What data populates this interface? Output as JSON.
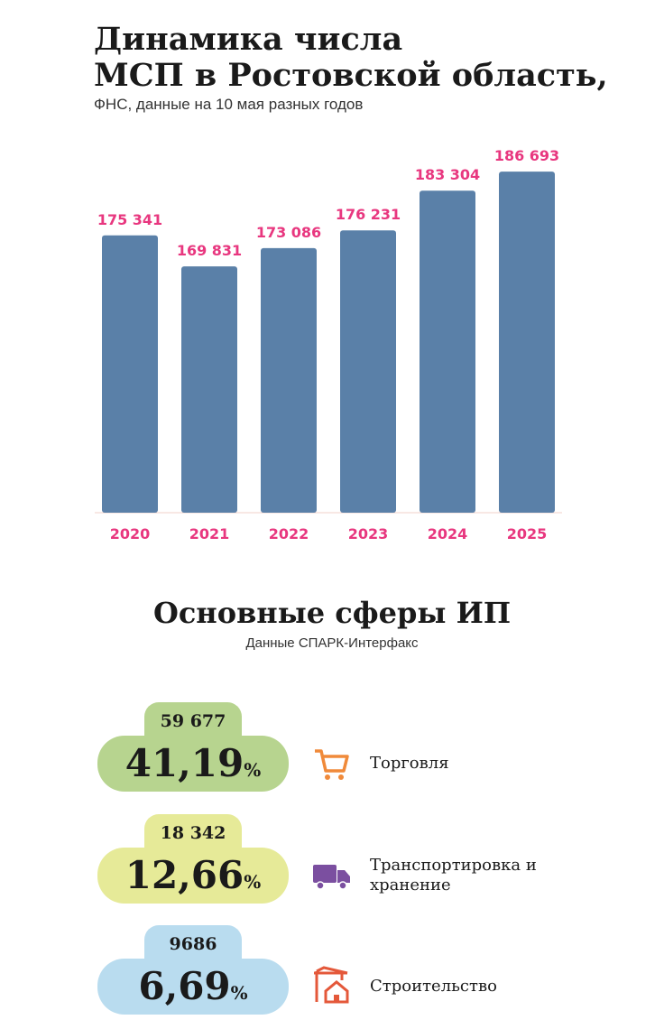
{
  "chart_data": {
    "type": "bar",
    "title": [
      "Динамика числа",
      "МСП в Ростовской область,"
    ],
    "subtitle": "ФНС, данные на 10 мая разных годов",
    "categories": [
      "2020",
      "2021",
      "2022",
      "2023",
      "2024",
      "2025"
    ],
    "values": [
      175341,
      169831,
      173086,
      176231,
      183304,
      186693
    ],
    "value_labels": [
      "175 341",
      "169 831",
      "173 086",
      "176 231",
      "183 304",
      "186 693"
    ],
    "color": "#5a80a8",
    "label_color": "#e8377f",
    "ylim": [
      126000,
      190000
    ]
  },
  "spheres": {
    "title": "Основные сферы ИП",
    "subtitle": "Данные СПАРК-Интерфакс",
    "items": [
      {
        "count": "59 677",
        "share": "41,19",
        "unit": "%",
        "label": "Торговля",
        "color": "#b7d48f"
      },
      {
        "count": "18 342",
        "share": "12,66",
        "unit": "%",
        "label": "Транспортировка и хранение",
        "color": "#e6ea98"
      },
      {
        "count": "9686",
        "share": "6,69",
        "unit": "%",
        "label": "Строительство",
        "color": "#b9dcef"
      }
    ]
  }
}
